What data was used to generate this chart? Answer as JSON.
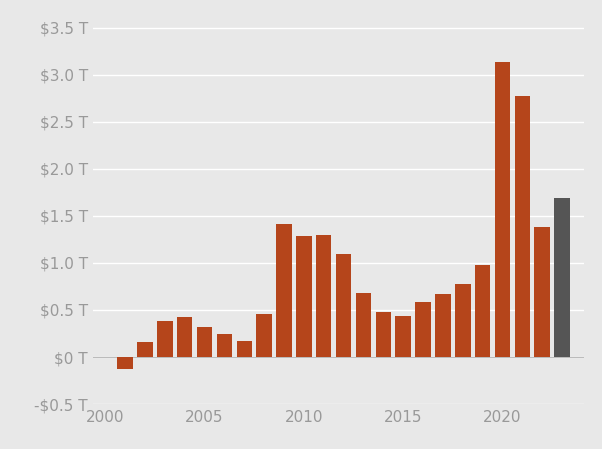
{
  "years": [
    2001,
    2002,
    2003,
    2004,
    2005,
    2006,
    2007,
    2008,
    2009,
    2010,
    2011,
    2012,
    2013,
    2014,
    2015,
    2016,
    2017,
    2018,
    2019,
    2020,
    2021,
    2022,
    2023
  ],
  "values": [
    -0.13,
    0.16,
    0.38,
    0.43,
    0.32,
    0.25,
    0.17,
    0.46,
    1.41,
    1.29,
    1.3,
    1.09,
    0.68,
    0.48,
    0.44,
    0.59,
    0.67,
    0.78,
    0.98,
    3.13,
    2.77,
    1.38,
    1.69
  ],
  "bar_colors": [
    "#b5451b",
    "#b5451b",
    "#b5451b",
    "#b5451b",
    "#b5451b",
    "#b5451b",
    "#b5451b",
    "#b5451b",
    "#b5451b",
    "#b5451b",
    "#b5451b",
    "#b5451b",
    "#b5451b",
    "#b5451b",
    "#b5451b",
    "#b5451b",
    "#b5451b",
    "#b5451b",
    "#b5451b",
    "#b5451b",
    "#b5451b",
    "#b5451b",
    "#555555"
  ],
  "ylim": [
    -0.5,
    3.65
  ],
  "yticks": [
    -0.5,
    0.0,
    0.5,
    1.0,
    1.5,
    2.0,
    2.5,
    3.0,
    3.5
  ],
  "ytick_labels": [
    "-$0.5 T",
    "$0 T",
    "$0.5 T",
    "$1.0 T",
    "$1.5 T",
    "$2.0 T",
    "$2.5 T",
    "$3.0 T",
    "$3.5 T"
  ],
  "xticks": [
    2000,
    2005,
    2010,
    2015,
    2020
  ],
  "background_color": "#e8e8e8",
  "grid_color": "#ffffff",
  "bar_width": 0.78,
  "tick_color": "#999999",
  "tick_fontsize": 11
}
